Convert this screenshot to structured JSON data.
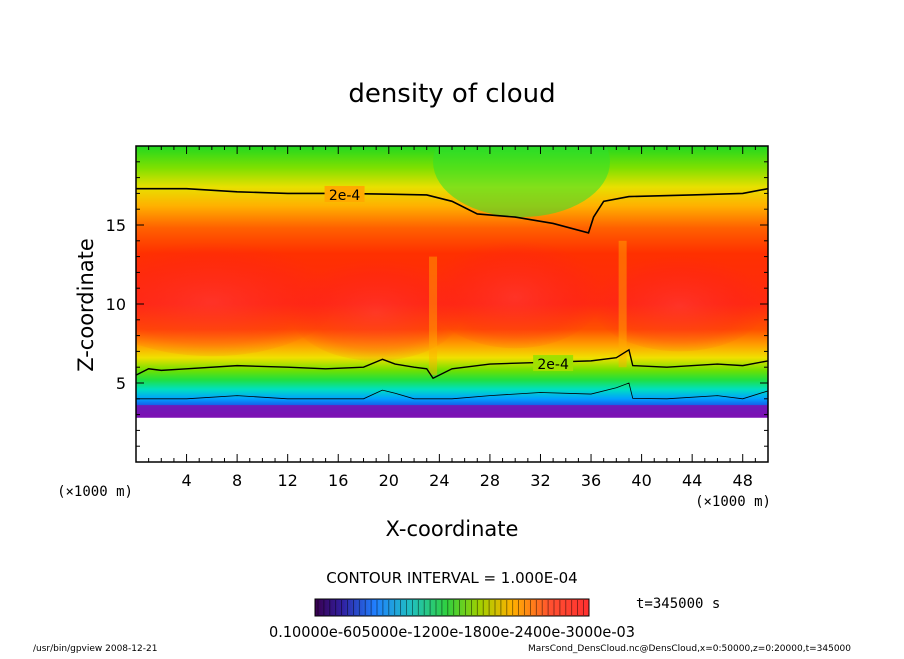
{
  "chart_data": {
    "type": "heatmap",
    "title": "density of cloud",
    "xlabel": "X-coordinate",
    "ylabel": "Z-coordinate",
    "x_unit": "(×1000 m)",
    "y_unit": "(×1000 m)",
    "xlim": [
      0,
      50
    ],
    "ylim": [
      0,
      20
    ],
    "x_ticks": [
      4,
      8,
      12,
      16,
      20,
      24,
      28,
      32,
      36,
      40,
      44,
      48
    ],
    "y_ticks": [
      5,
      10,
      15
    ],
    "contour_interval_text": "CONTOUR INTERVAL = 1.000E-04",
    "contour_label": "2e-4",
    "contour_label_positions": [
      {
        "x": 16.5,
        "z": 16.9
      },
      {
        "x": 33.0,
        "z": 6.2
      }
    ],
    "upper_contour_2e4": [
      [
        0,
        17.3
      ],
      [
        4,
        17.3
      ],
      [
        8,
        17.1
      ],
      [
        12,
        17.0
      ],
      [
        16,
        17.0
      ],
      [
        20,
        16.95
      ],
      [
        23,
        16.9
      ],
      [
        25,
        16.5
      ],
      [
        27,
        15.7
      ],
      [
        30,
        15.5
      ],
      [
        33,
        15.1
      ],
      [
        35.8,
        14.5
      ],
      [
        36.2,
        15.5
      ],
      [
        37,
        16.5
      ],
      [
        39,
        16.8
      ],
      [
        44,
        16.9
      ],
      [
        48,
        17.0
      ],
      [
        50,
        17.3
      ]
    ],
    "lower_contour_2e4": [
      [
        0,
        5.5
      ],
      [
        1,
        5.9
      ],
      [
        2,
        5.8
      ],
      [
        4,
        5.9
      ],
      [
        8,
        6.1
      ],
      [
        12,
        6.0
      ],
      [
        15,
        5.9
      ],
      [
        18,
        6.0
      ],
      [
        19.5,
        6.5
      ],
      [
        20.5,
        6.2
      ],
      [
        22,
        6.0
      ],
      [
        23,
        5.9
      ],
      [
        23.5,
        5.3
      ],
      [
        25,
        5.9
      ],
      [
        28,
        6.2
      ],
      [
        32,
        6.3
      ],
      [
        36,
        6.4
      ],
      [
        38,
        6.6
      ],
      [
        39,
        7.1
      ],
      [
        39.3,
        6.1
      ],
      [
        42,
        6.0
      ],
      [
        46,
        6.2
      ],
      [
        48,
        6.1
      ],
      [
        50,
        6.4
      ]
    ],
    "cloud_base_z": 3.6,
    "field_description_colors": {
      "peak": "#ff2a20",
      "high": "#ff4000",
      "mid": "#ffd000",
      "low": "#30e000",
      "lowest": "#2020c0",
      "base": "#8010b0"
    },
    "colorbar_label_text": "0.10000e-605000e-1200e-1800e-2400e-3000e-03",
    "time_label": "t=345000 s",
    "footer_left": "/usr/bin/gpview   2008-12-21",
    "footer_right": "MarsCond_DensCloud.nc@DensCloud,x=0:50000,z=0:20000,t=345000"
  }
}
